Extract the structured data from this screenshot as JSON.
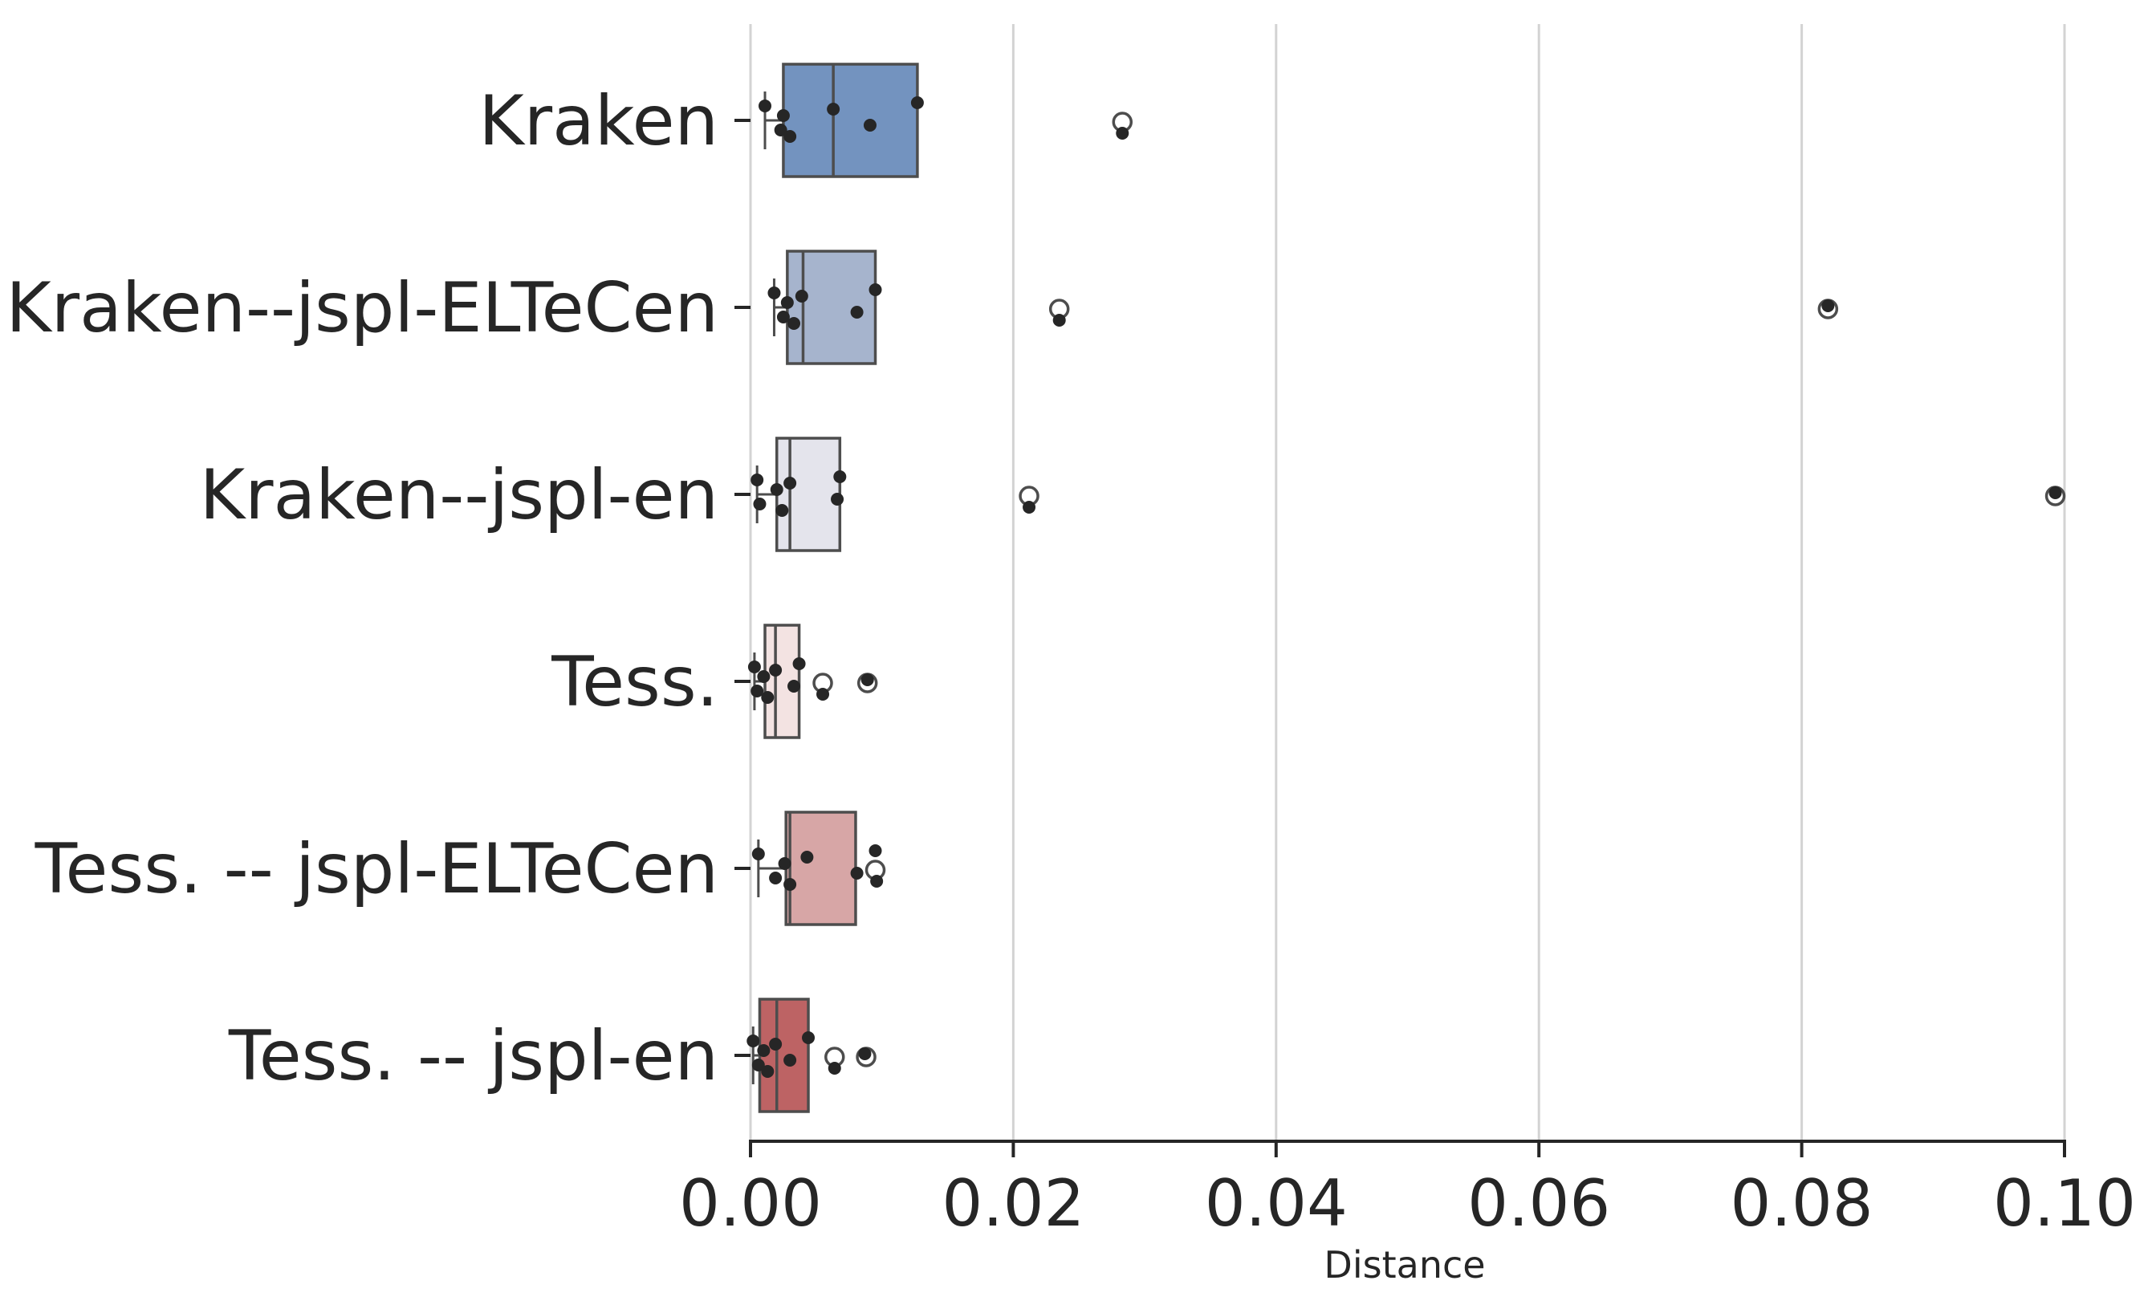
{
  "chart_data": {
    "type": "box",
    "orientation": "horizontal",
    "title": "",
    "xlabel": "Distance",
    "ylabel": "",
    "xlim": [
      0.0,
      0.1
    ],
    "xticks": [
      "0.00",
      "0.02",
      "0.04",
      "0.06",
      "0.08",
      "0.10"
    ],
    "grid": "vertical",
    "categories": [
      "Kraken",
      "Kraken--jspl-ELTeCen",
      "Kraken--jspl-en",
      "Tess.",
      "Tess. -- jspl-ELTeCen",
      "Tess. -- jspl-en"
    ],
    "series": [
      {
        "color": "#7393bf",
        "q1": 0.0025,
        "median": 0.0063,
        "q3": 0.0127,
        "whisker_low": 0.0011,
        "whisker_high": 0.0127,
        "outliers": [
          0.0283
        ],
        "points": [
          0.0011,
          0.0023,
          0.0025,
          0.003,
          0.0063,
          0.0091,
          0.0127,
          0.0283
        ]
      },
      {
        "color": "#a6b4cd",
        "q1": 0.0028,
        "median": 0.004,
        "q3": 0.0095,
        "whisker_low": 0.0018,
        "whisker_high": 0.0095,
        "outliers": [
          0.0235,
          0.082
        ],
        "points": [
          0.0018,
          0.0025,
          0.0028,
          0.0033,
          0.0039,
          0.0081,
          0.0095,
          0.0235,
          0.082
        ]
      },
      {
        "color": "#e4e4ec",
        "q1": 0.002,
        "median": 0.003,
        "q3": 0.0068,
        "whisker_low": 0.0005,
        "whisker_high": 0.0068,
        "outliers": [
          0.0212,
          0.0993
        ],
        "points": [
          0.0005,
          0.0007,
          0.002,
          0.0024,
          0.003,
          0.0066,
          0.0068,
          0.0212,
          0.0993
        ]
      },
      {
        "color": "#f3e3e2",
        "q1": 0.0011,
        "median": 0.0019,
        "q3": 0.0037,
        "whisker_low": 0.0003,
        "whisker_high": 0.0037,
        "outliers": [
          0.0055,
          0.0089
        ],
        "points": [
          0.0003,
          0.0005,
          0.001,
          0.0013,
          0.0019,
          0.0033,
          0.0037,
          0.0055,
          0.0089
        ]
      },
      {
        "color": "#d7a6a6",
        "q1": 0.0027,
        "median": 0.003,
        "q3": 0.008,
        "whisker_low": 0.0006,
        "whisker_high": 0.008,
        "outliers": [
          0.0095
        ],
        "points": [
          0.0006,
          0.0019,
          0.0026,
          0.003,
          0.0043,
          0.0081,
          0.0095,
          0.0096
        ]
      },
      {
        "color": "#bd6364",
        "q1": 0.0007,
        "median": 0.002,
        "q3": 0.0044,
        "whisker_low": 0.0002,
        "whisker_high": 0.0044,
        "outliers": [
          0.0064,
          0.0088
        ],
        "points": [
          0.0002,
          0.0006,
          0.001,
          0.0013,
          0.0019,
          0.003,
          0.0044,
          0.0064,
          0.0087
        ]
      }
    ]
  }
}
